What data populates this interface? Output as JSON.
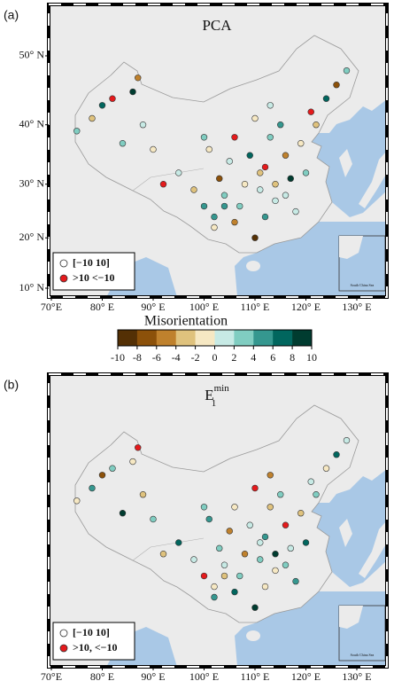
{
  "figure": {
    "lon_ticks": [
      {
        "value": 70,
        "label": "70°E"
      },
      {
        "value": 80,
        "label": "80° E"
      },
      {
        "value": 90,
        "label": "90° E"
      },
      {
        "value": 100,
        "label": "100° E"
      },
      {
        "value": 110,
        "label": "110° E"
      },
      {
        "value": 120,
        "label": "120° E"
      },
      {
        "value": 130,
        "label": "130° E"
      }
    ],
    "lat_ticks": [
      {
        "value": 10,
        "label": "10° N"
      },
      {
        "value": 20,
        "label": "20° N"
      },
      {
        "value": 30,
        "label": "30° N"
      },
      {
        "value": 40,
        "label": "40° N"
      },
      {
        "value": 50,
        "label": "50° N"
      }
    ],
    "inset_label": "South China Sea",
    "stations": {
      "lon": [
        75,
        78,
        80,
        82,
        84,
        86,
        87,
        88,
        90,
        92,
        95,
        98,
        100,
        101,
        102,
        103,
        104,
        105,
        106,
        106,
        107,
        108,
        109,
        110,
        111,
        112,
        112,
        113,
        114,
        114,
        115,
        116,
        117,
        118,
        119,
        120,
        121,
        122,
        124,
        126,
        128,
        102,
        104,
        100,
        110,
        113,
        116,
        111
      ],
      "lat": [
        39,
        41,
        43,
        44,
        37,
        45,
        47,
        40,
        36,
        30,
        32,
        29,
        26,
        36,
        24,
        31,
        28,
        34,
        23,
        38,
        26,
        30,
        35,
        41,
        29,
        24,
        33,
        38,
        30,
        27,
        40,
        35,
        31,
        25,
        37,
        32,
        42,
        40,
        44,
        46,
        48,
        22,
        26,
        38,
        20,
        43,
        28,
        32
      ]
    },
    "panels": [
      {
        "label": "(a)",
        "title": "PCA",
        "values": [
          3,
          -4,
          6,
          -12,
          2,
          8,
          -6,
          1,
          -2,
          15,
          0,
          -3,
          4,
          -1,
          5,
          -8,
          2,
          1,
          -5,
          12,
          3,
          -2,
          7,
          -1,
          0,
          4,
          -14,
          2,
          -3,
          1,
          5,
          -6,
          9,
          0,
          -2,
          3,
          11,
          -4,
          6,
          -7,
          2,
          -1,
          5,
          3,
          -9,
          1,
          0,
          -3
        ],
        "legend": [
          "[−10 10]",
          ">10  <−10"
        ]
      },
      {
        "label": "(b)",
        "title": "E",
        "title_sub": "1",
        "title_sup": "min",
        "values": [
          -2,
          5,
          -7,
          3,
          9,
          -1,
          13,
          -4,
          2,
          -3,
          6,
          0,
          -11,
          4,
          -2,
          3,
          1,
          -5,
          7,
          -1,
          2,
          -6,
          0,
          12,
          3,
          -2,
          4,
          -3,
          8,
          -1,
          2,
          -13,
          1,
          5,
          -4,
          6,
          0,
          3,
          -2,
          7,
          1,
          4,
          -3,
          2,
          10,
          -5,
          3,
          1
        ],
        "legend": [
          "[−10 10]",
          ">10, <−10"
        ]
      }
    ],
    "colorbar": {
      "title": "Misorientation",
      "ticks": [
        -10,
        -8,
        -6,
        -4,
        -2,
        0,
        2,
        4,
        6,
        8,
        10
      ],
      "colors": [
        "#543005",
        "#8c510a",
        "#bf812d",
        "#dfc27d",
        "#f6e8c3",
        "#c7eae5",
        "#80cdc1",
        "#35978f",
        "#01665e",
        "#003c30"
      ],
      "outside_color": "#e41a1c"
    }
  }
}
